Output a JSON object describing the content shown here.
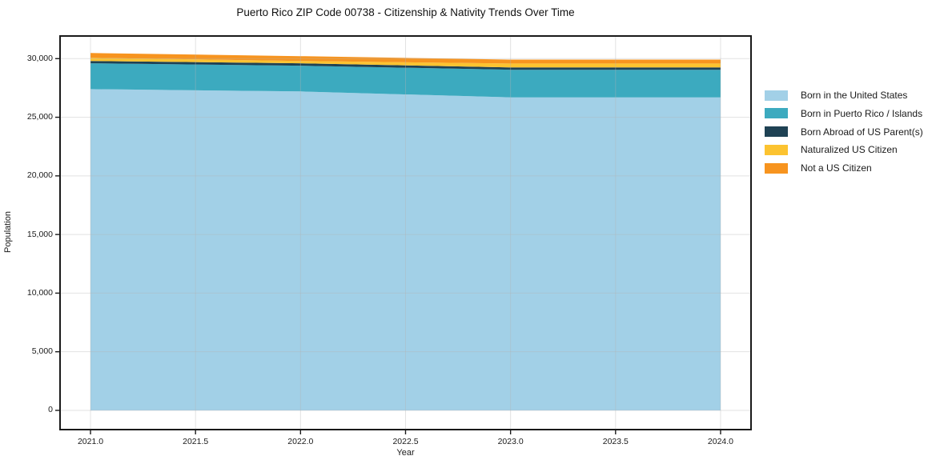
{
  "chart_data": {
    "type": "area",
    "stacked": true,
    "title": "Puerto Rico ZIP Code 00738 - Citizenship & Nativity Trends Over Time",
    "xlabel": "Year",
    "ylabel": "Population",
    "x": [
      2021.0,
      2022.0,
      2023.0,
      2024.0
    ],
    "series": [
      {
        "name": "Born in the United States",
        "color": "#a2d0e7",
        "values": [
          27400,
          27200,
          26700,
          26700
        ]
      },
      {
        "name": "Born in Puerto Rico / Islands",
        "color": "#3caabf",
        "values": [
          2200,
          2200,
          2350,
          2350
        ]
      },
      {
        "name": "Born Abroad of US Parent(s)",
        "color": "#1f4254",
        "values": [
          200,
          200,
          200,
          200
        ]
      },
      {
        "name": "Naturalized US Citizen",
        "color": "#fcc330",
        "values": [
          270,
          200,
          330,
          330
        ]
      },
      {
        "name": "Not a US Citizen",
        "color": "#f7941f",
        "values": [
          410,
          410,
          340,
          340
        ]
      }
    ],
    "x_ticks": {
      "values": [
        2021.0,
        2021.5,
        2022.0,
        2022.5,
        2023.0,
        2023.5,
        2024.0
      ],
      "labels": [
        "2021.0",
        "2021.5",
        "2022.0",
        "2022.5",
        "2023.0",
        "2023.5",
        "2024.0"
      ]
    },
    "y_ticks": {
      "values": [
        0,
        5000,
        10000,
        15000,
        20000,
        25000,
        30000
      ],
      "labels": [
        "0",
        "5,000",
        "10,000",
        "15,000",
        "20,000",
        "25,000",
        "30,000"
      ]
    },
    "xlim": [
      2020.855,
      2024.145
    ],
    "ylim": [
      -1640,
      31930
    ],
    "grid": true,
    "legend_position": "right",
    "colors": {
      "spine": "#1a1a1a",
      "grid": "rgba(180,180,180,0.38)",
      "tick": "#1a1a1a",
      "background": "#ffffff"
    }
  }
}
